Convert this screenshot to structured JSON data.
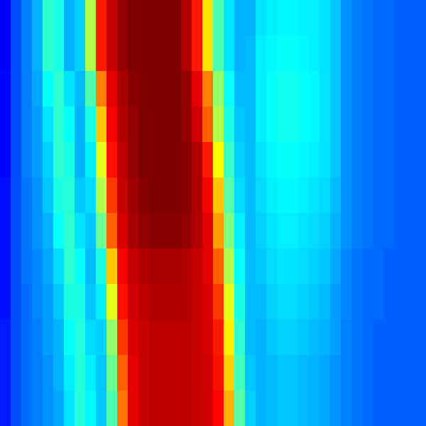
{
  "chart_data": {
    "type": "heatmap",
    "color": "jet",
    "tick_labels": false,
    "zlim": [
      0,
      1
    ],
    "cells": [
      [
        0.12,
        0.2,
        0.25,
        0.3,
        0.42,
        0.4,
        0.3,
        0.33,
        0.55,
        0.85,
        0.93,
        0.98,
        1,
        1,
        1,
        1,
        1,
        0.95,
        0.85,
        0.65,
        0.45,
        0.35,
        0.3,
        0.3,
        0.35,
        0.36,
        0.37,
        0.37,
        0.36,
        0.36,
        0.35,
        0.32,
        0.27,
        0.25,
        0.24,
        0.23,
        0.23,
        0.22,
        0.22,
        0.22
      ],
      [
        0.12,
        0.2,
        0.25,
        0.3,
        0.42,
        0.4,
        0.3,
        0.33,
        0.55,
        0.85,
        0.93,
        0.98,
        1,
        1,
        1,
        1,
        1,
        0.95,
        0.85,
        0.65,
        0.45,
        0.35,
        0.3,
        0.31,
        0.36,
        0.37,
        0.38,
        0.38,
        0.37,
        0.36,
        0.35,
        0.32,
        0.27,
        0.25,
        0.24,
        0.23,
        0.23,
        0.22,
        0.22,
        0.22
      ],
      [
        0.13,
        0.2,
        0.25,
        0.29,
        0.38,
        0.42,
        0.35,
        0.31,
        0.45,
        0.75,
        0.9,
        0.96,
        0.99,
        1,
        1,
        1,
        1,
        0.98,
        0.9,
        0.75,
        0.52,
        0.38,
        0.31,
        0.31,
        0.36,
        0.38,
        0.39,
        0.39,
        0.38,
        0.37,
        0.35,
        0.32,
        0.27,
        0.25,
        0.24,
        0.23,
        0.23,
        0.22,
        0.22,
        0.22
      ],
      [
        0.13,
        0.2,
        0.25,
        0.28,
        0.35,
        0.42,
        0.38,
        0.3,
        0.4,
        0.68,
        0.88,
        0.95,
        0.98,
        1,
        1,
        1,
        1,
        0.98,
        0.92,
        0.78,
        0.55,
        0.4,
        0.32,
        0.31,
        0.36,
        0.38,
        0.39,
        0.39,
        0.38,
        0.37,
        0.35,
        0.32,
        0.27,
        0.25,
        0.24,
        0.23,
        0.23,
        0.22,
        0.22,
        0.22
      ],
      [
        0.13,
        0.2,
        0.25,
        0.28,
        0.33,
        0.42,
        0.4,
        0.3,
        0.36,
        0.6,
        0.86,
        0.94,
        0.98,
        1,
        1,
        1,
        1,
        0.99,
        0.95,
        0.85,
        0.62,
        0.43,
        0.33,
        0.31,
        0.35,
        0.37,
        0.38,
        0.38,
        0.37,
        0.36,
        0.35,
        0.32,
        0.27,
        0.25,
        0.24,
        0.23,
        0.23,
        0.22,
        0.22,
        0.22
      ],
      [
        0.14,
        0.2,
        0.24,
        0.27,
        0.32,
        0.4,
        0.41,
        0.32,
        0.34,
        0.55,
        0.82,
        0.93,
        0.97,
        0.99,
        1,
        1,
        1,
        0.99,
        0.95,
        0.88,
        0.68,
        0.46,
        0.34,
        0.31,
        0.34,
        0.36,
        0.37,
        0.37,
        0.36,
        0.35,
        0.34,
        0.31,
        0.27,
        0.25,
        0.24,
        0.23,
        0.23,
        0.22,
        0.22,
        0.22
      ],
      [
        0.14,
        0.2,
        0.24,
        0.27,
        0.3,
        0.38,
        0.42,
        0.35,
        0.32,
        0.48,
        0.78,
        0.91,
        0.96,
        0.98,
        0.99,
        0.99,
        0.99,
        0.98,
        0.95,
        0.9,
        0.72,
        0.5,
        0.36,
        0.31,
        0.33,
        0.35,
        0.36,
        0.36,
        0.35,
        0.34,
        0.33,
        0.3,
        0.27,
        0.25,
        0.24,
        0.23,
        0.23,
        0.22,
        0.22,
        0.22
      ],
      [
        0.14,
        0.2,
        0.24,
        0.26,
        0.29,
        0.34,
        0.42,
        0.38,
        0.31,
        0.4,
        0.68,
        0.88,
        0.93,
        0.95,
        0.96,
        0.96,
        0.96,
        0.95,
        0.93,
        0.9,
        0.78,
        0.55,
        0.38,
        0.31,
        0.32,
        0.34,
        0.35,
        0.35,
        0.34,
        0.33,
        0.32,
        0.29,
        0.26,
        0.24,
        0.23,
        0.23,
        0.22,
        0.22,
        0.22,
        0.22
      ],
      [
        0.14,
        0.2,
        0.23,
        0.26,
        0.28,
        0.32,
        0.4,
        0.4,
        0.32,
        0.36,
        0.6,
        0.86,
        0.92,
        0.94,
        0.95,
        0.95,
        0.95,
        0.95,
        0.93,
        0.91,
        0.82,
        0.6,
        0.4,
        0.31,
        0.31,
        0.33,
        0.34,
        0.34,
        0.33,
        0.32,
        0.31,
        0.28,
        0.26,
        0.24,
        0.23,
        0.23,
        0.22,
        0.22,
        0.22,
        0.22
      ],
      [
        0.15,
        0.2,
        0.23,
        0.25,
        0.28,
        0.3,
        0.38,
        0.41,
        0.34,
        0.33,
        0.52,
        0.82,
        0.91,
        0.93,
        0.94,
        0.94,
        0.94,
        0.94,
        0.93,
        0.91,
        0.85,
        0.64,
        0.42,
        0.31,
        0.3,
        0.32,
        0.33,
        0.33,
        0.32,
        0.31,
        0.3,
        0.28,
        0.25,
        0.24,
        0.23,
        0.22,
        0.22,
        0.22,
        0.22,
        0.22
      ],
      [
        0.15,
        0.2,
        0.23,
        0.25,
        0.27,
        0.3,
        0.36,
        0.41,
        0.36,
        0.32,
        0.48,
        0.78,
        0.9,
        0.93,
        0.94,
        0.94,
        0.94,
        0.94,
        0.93,
        0.92,
        0.86,
        0.67,
        0.44,
        0.32,
        0.3,
        0.31,
        0.32,
        0.32,
        0.31,
        0.3,
        0.29,
        0.27,
        0.25,
        0.24,
        0.23,
        0.22,
        0.22,
        0.22,
        0.22,
        0.22
      ],
      [
        0.15,
        0.2,
        0.23,
        0.25,
        0.27,
        0.29,
        0.35,
        0.41,
        0.37,
        0.32,
        0.45,
        0.76,
        0.9,
        0.93,
        0.94,
        0.94,
        0.94,
        0.94,
        0.93,
        0.92,
        0.87,
        0.7,
        0.46,
        0.33,
        0.3,
        0.31,
        0.32,
        0.32,
        0.31,
        0.3,
        0.29,
        0.27,
        0.25,
        0.24,
        0.23,
        0.22,
        0.22,
        0.22,
        0.22,
        0.22
      ]
    ]
  }
}
